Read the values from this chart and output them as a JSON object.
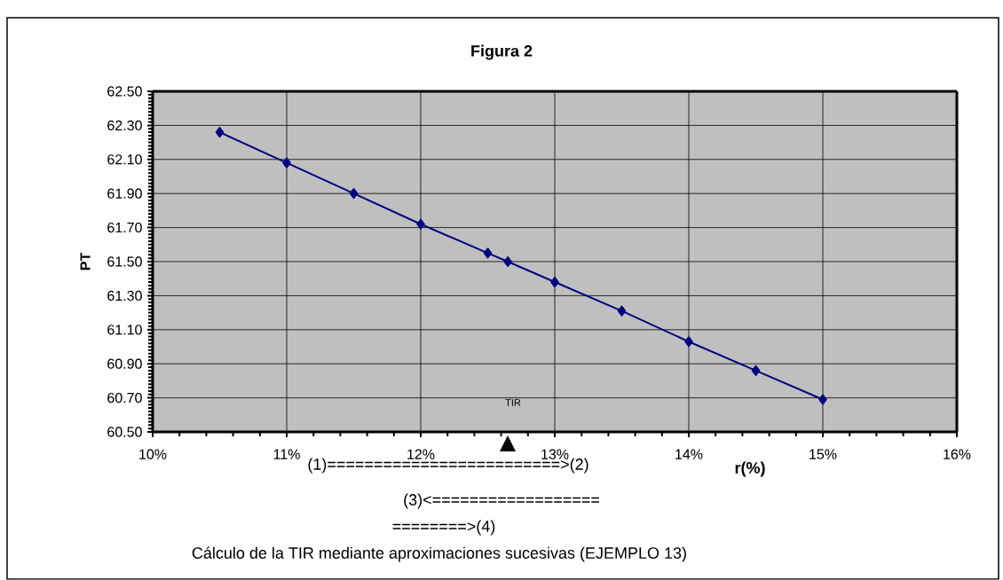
{
  "chart_data": {
    "type": "line",
    "title": "Figura 2",
    "xlabel": "r(%)",
    "ylabel": "PT",
    "x": [
      10.5,
      11,
      11.5,
      12,
      12.5,
      12.65,
      13,
      13.5,
      14,
      14.5,
      15
    ],
    "series": [
      {
        "color": "#000080",
        "values": [
          62.26,
          62.08,
          61.9,
          61.72,
          61.55,
          61.5,
          61.38,
          61.21,
          61.03,
          60.86,
          60.69
        ]
      }
    ],
    "xlim": [
      10,
      16
    ],
    "xticks": [
      {
        "value": 10,
        "label": "10%"
      },
      {
        "value": 11,
        "label": "11%"
      },
      {
        "value": 12,
        "label": "12%"
      },
      {
        "value": 13,
        "label": "13%"
      },
      {
        "value": 14,
        "label": "14%"
      },
      {
        "value": 15,
        "label": "15%"
      },
      {
        "value": 16,
        "label": "16%"
      }
    ],
    "ylim": [
      60.5,
      62.5
    ],
    "yticks": [
      {
        "value": 60.5,
        "label": "60.50"
      },
      {
        "value": 60.7,
        "label": "60.70"
      },
      {
        "value": 60.9,
        "label": "60.90"
      },
      {
        "value": 61.1,
        "label": "61.10"
      },
      {
        "value": 61.3,
        "label": "61.30"
      },
      {
        "value": 61.5,
        "label": "61.50"
      },
      {
        "value": 61.7,
        "label": "61.70"
      },
      {
        "value": 61.9,
        "label": "61.90"
      },
      {
        "value": 62.1,
        "label": "62.10"
      },
      {
        "value": 62.3,
        "label": "62.30"
      },
      {
        "value": 62.5,
        "label": "62.50"
      }
    ],
    "grid": true,
    "marker": "diamond",
    "line_style": "solid",
    "annotations": [
      "TIR",
      "(1)=========================>(2)",
      "(3)<==================",
      "========>(4)",
      "Cálculo de la TIR mediante aproximaciones sucesivas (EJEMPLO 13)"
    ]
  }
}
